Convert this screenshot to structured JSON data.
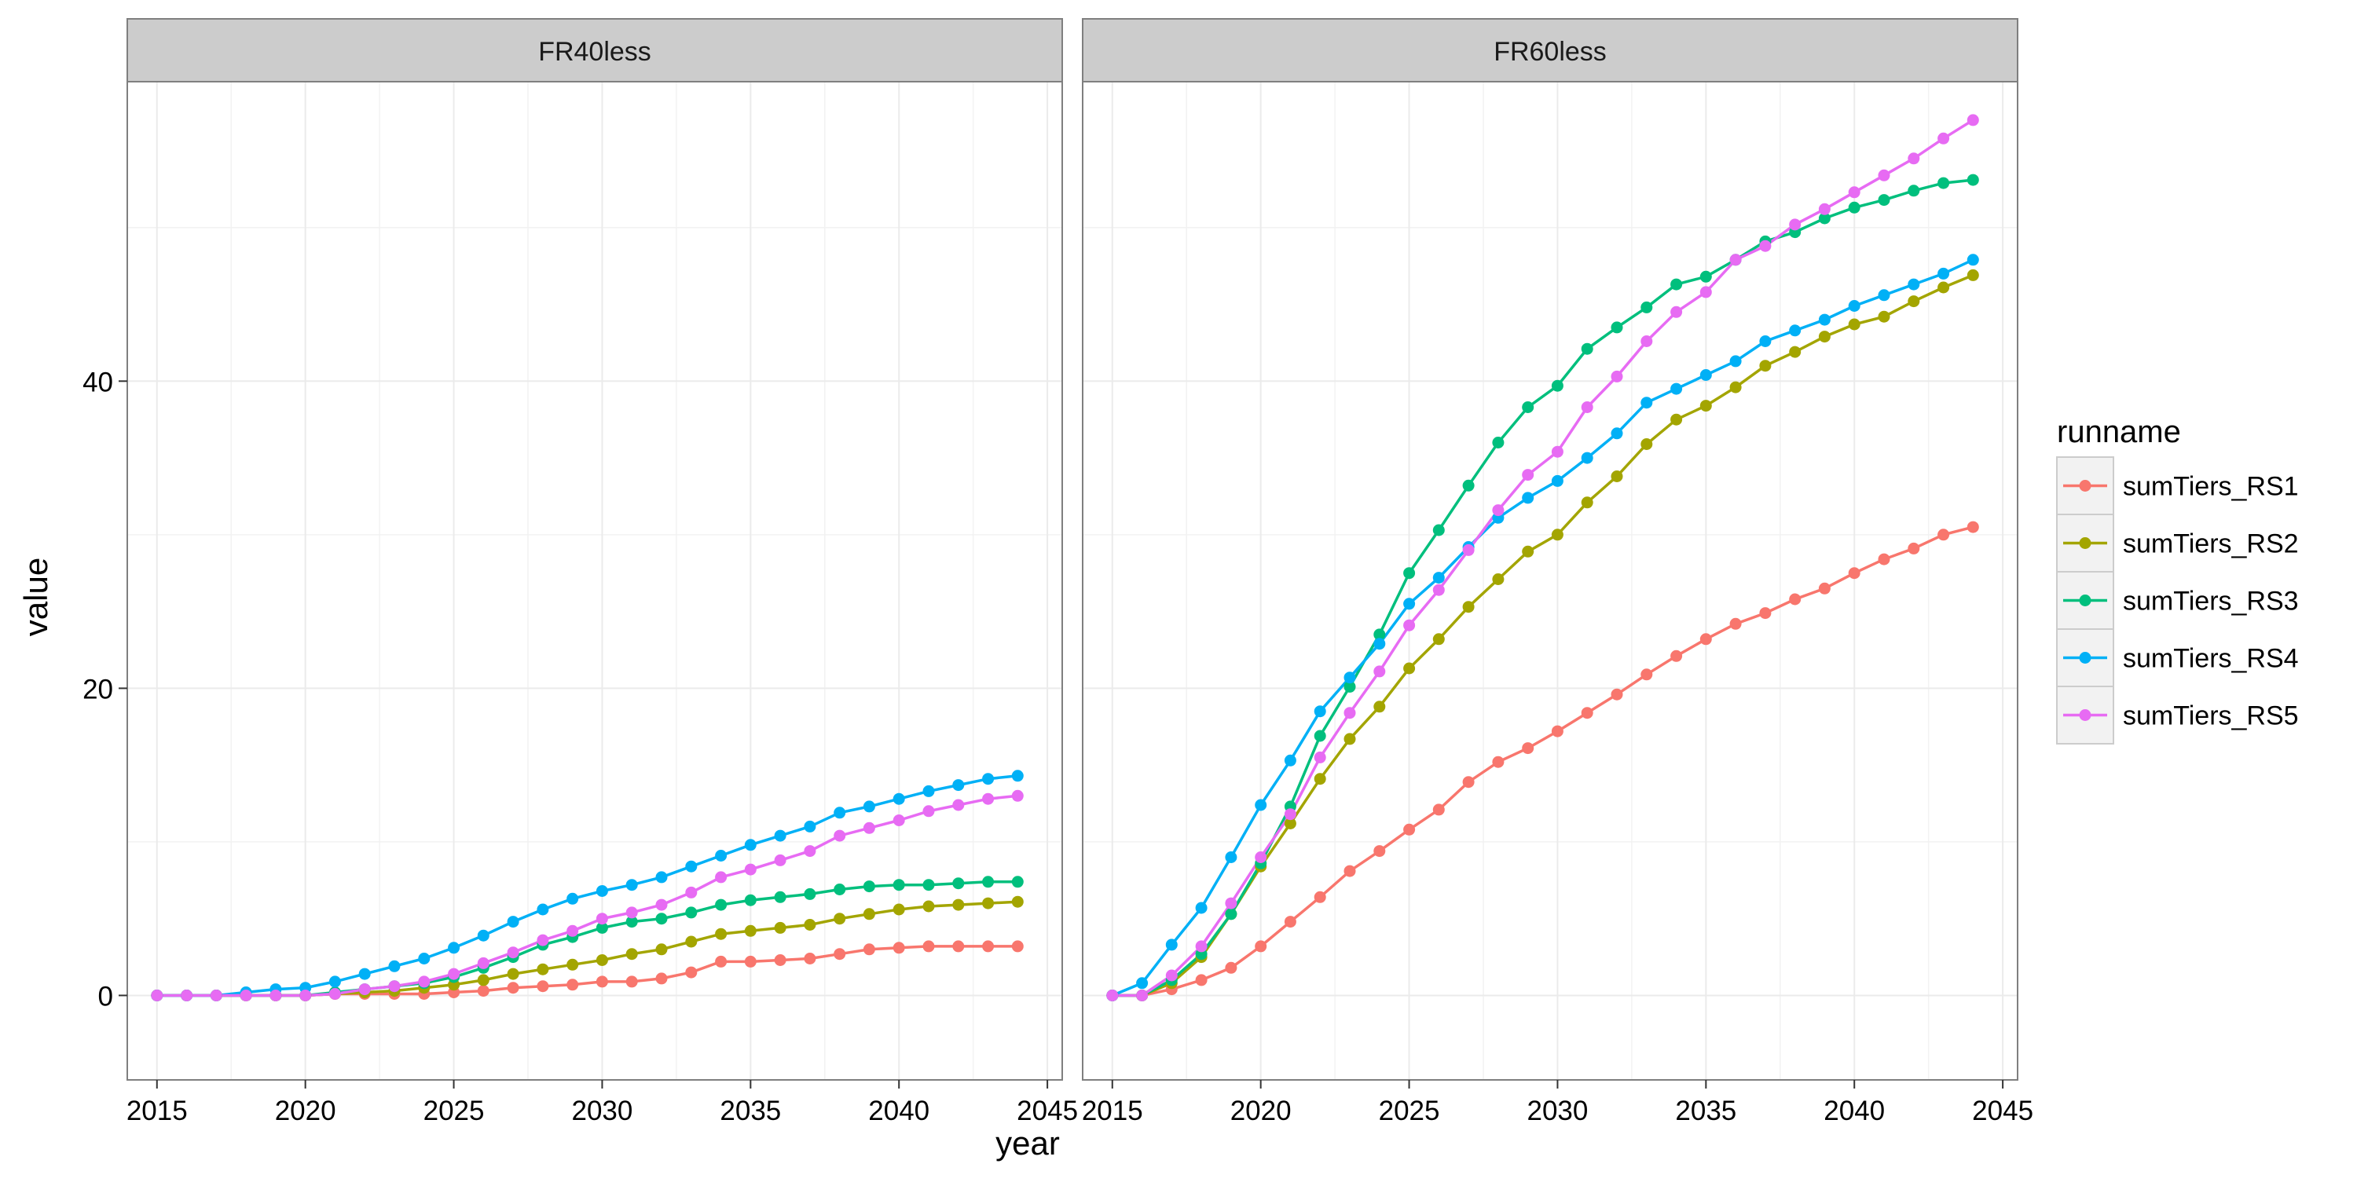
{
  "chart_data": {
    "type": "line",
    "facet_variable": "",
    "facets": [
      "FR40less",
      "FR60less"
    ],
    "xlabel": "year",
    "ylabel": "value",
    "xlim": [
      2014,
      2045.5
    ],
    "ylim": [
      -5.5,
      59.5
    ],
    "x_ticks": [
      2015,
      2020,
      2025,
      2030,
      2035,
      2040,
      2045
    ],
    "y_ticks": [
      0,
      20,
      40
    ],
    "grid": true,
    "legend": {
      "title": "runname",
      "position": "right"
    },
    "x": [
      2015,
      2016,
      2017,
      2018,
      2019,
      2020,
      2021,
      2022,
      2023,
      2024,
      2025,
      2026,
      2027,
      2028,
      2029,
      2030,
      2031,
      2032,
      2033,
      2034,
      2035,
      2036,
      2037,
      2038,
      2039,
      2040,
      2041,
      2042,
      2043,
      2044
    ],
    "series": [
      {
        "name": "sumTiers_RS1",
        "color": "#F8766D",
        "values": {
          "FR40less": [
            0,
            0,
            0,
            0,
            0,
            0,
            0.1,
            0.1,
            0.1,
            0.1,
            0.2,
            0.3,
            0.5,
            0.6,
            0.7,
            0.9,
            0.9,
            1.1,
            1.5,
            2.2,
            2.2,
            2.3,
            2.4,
            2.7,
            3.0,
            3.1,
            3.2,
            3.2,
            3.2,
            3.2
          ],
          "FR60less": [
            0,
            0,
            0.4,
            1.0,
            1.8,
            3.2,
            4.8,
            6.4,
            8.1,
            9.4,
            10.8,
            12.1,
            13.9,
            15.2,
            16.1,
            17.2,
            18.4,
            19.6,
            20.9,
            22.1,
            23.2,
            24.2,
            24.9,
            25.8,
            26.5,
            27.5,
            28.4,
            29.1,
            30.0,
            30.5
          ]
        }
      },
      {
        "name": "sumTiers_RS2",
        "color": "#A3A500",
        "values": {
          "FR40less": [
            0,
            0,
            0,
            0,
            0,
            0,
            0.1,
            0.2,
            0.3,
            0.5,
            0.7,
            1.0,
            1.4,
            1.7,
            2.0,
            2.3,
            2.7,
            3.0,
            3.5,
            4.0,
            4.2,
            4.4,
            4.6,
            5.0,
            5.3,
            5.6,
            5.8,
            5.9,
            6.0,
            6.1
          ],
          "FR60less": [
            0,
            0,
            0.8,
            2.5,
            5.3,
            8.4,
            11.2,
            14.1,
            16.7,
            18.8,
            21.3,
            23.2,
            25.3,
            27.1,
            28.9,
            30.0,
            32.1,
            33.8,
            35.9,
            37.5,
            38.4,
            39.6,
            41.0,
            41.9,
            42.9,
            43.7,
            44.2,
            45.2,
            46.1,
            46.9
          ]
        }
      },
      {
        "name": "sumTiers_RS3",
        "color": "#00BF7D",
        "values": {
          "FR40less": [
            0,
            0,
            0,
            0,
            0,
            0,
            0.2,
            0.4,
            0.6,
            0.8,
            1.2,
            1.8,
            2.5,
            3.3,
            3.8,
            4.4,
            4.8,
            5.0,
            5.4,
            5.9,
            6.2,
            6.4,
            6.6,
            6.9,
            7.1,
            7.2,
            7.2,
            7.3,
            7.4,
            7.4
          ],
          "FR60less": [
            0,
            0,
            1.0,
            2.7,
            5.3,
            8.6,
            12.3,
            16.9,
            20.1,
            23.5,
            27.5,
            30.3,
            33.2,
            36.0,
            38.3,
            39.7,
            42.1,
            43.5,
            44.8,
            46.3,
            46.8,
            47.9,
            49.1,
            49.7,
            50.6,
            51.3,
            51.8,
            52.4,
            52.9,
            53.1
          ]
        }
      },
      {
        "name": "sumTiers_RS4",
        "color": "#00B0F6",
        "values": {
          "FR40less": [
            0,
            0,
            0,
            0.2,
            0.4,
            0.5,
            0.9,
            1.4,
            1.9,
            2.4,
            3.1,
            3.9,
            4.8,
            5.6,
            6.3,
            6.8,
            7.2,
            7.7,
            8.4,
            9.1,
            9.8,
            10.4,
            11.0,
            11.9,
            12.3,
            12.8,
            13.3,
            13.7,
            14.1,
            14.3
          ],
          "FR60less": [
            0,
            0.8,
            3.3,
            5.7,
            9.0,
            12.4,
            15.3,
            18.5,
            20.7,
            22.9,
            25.5,
            27.2,
            29.2,
            31.1,
            32.4,
            33.5,
            35.0,
            36.6,
            38.6,
            39.5,
            40.4,
            41.3,
            42.6,
            43.3,
            44.0,
            44.9,
            45.6,
            46.3,
            47.0,
            47.9
          ]
        }
      },
      {
        "name": "sumTiers_RS5",
        "color": "#E76BF3",
        "values": {
          "FR40less": [
            0,
            0,
            0,
            0,
            0,
            0,
            0.1,
            0.4,
            0.6,
            0.9,
            1.4,
            2.1,
            2.8,
            3.6,
            4.2,
            5.0,
            5.4,
            5.9,
            6.7,
            7.7,
            8.2,
            8.8,
            9.4,
            10.4,
            10.9,
            11.4,
            12.0,
            12.4,
            12.8,
            13.0
          ],
          "FR60less": [
            0,
            0,
            1.3,
            3.2,
            6.0,
            9.0,
            11.8,
            15.5,
            18.4,
            21.1,
            24.1,
            26.4,
            29.0,
            31.6,
            33.9,
            35.4,
            38.3,
            40.3,
            42.6,
            44.5,
            45.8,
            47.9,
            48.8,
            50.2,
            51.2,
            52.3,
            53.4,
            54.5,
            55.8,
            57.0
          ]
        }
      }
    ]
  }
}
